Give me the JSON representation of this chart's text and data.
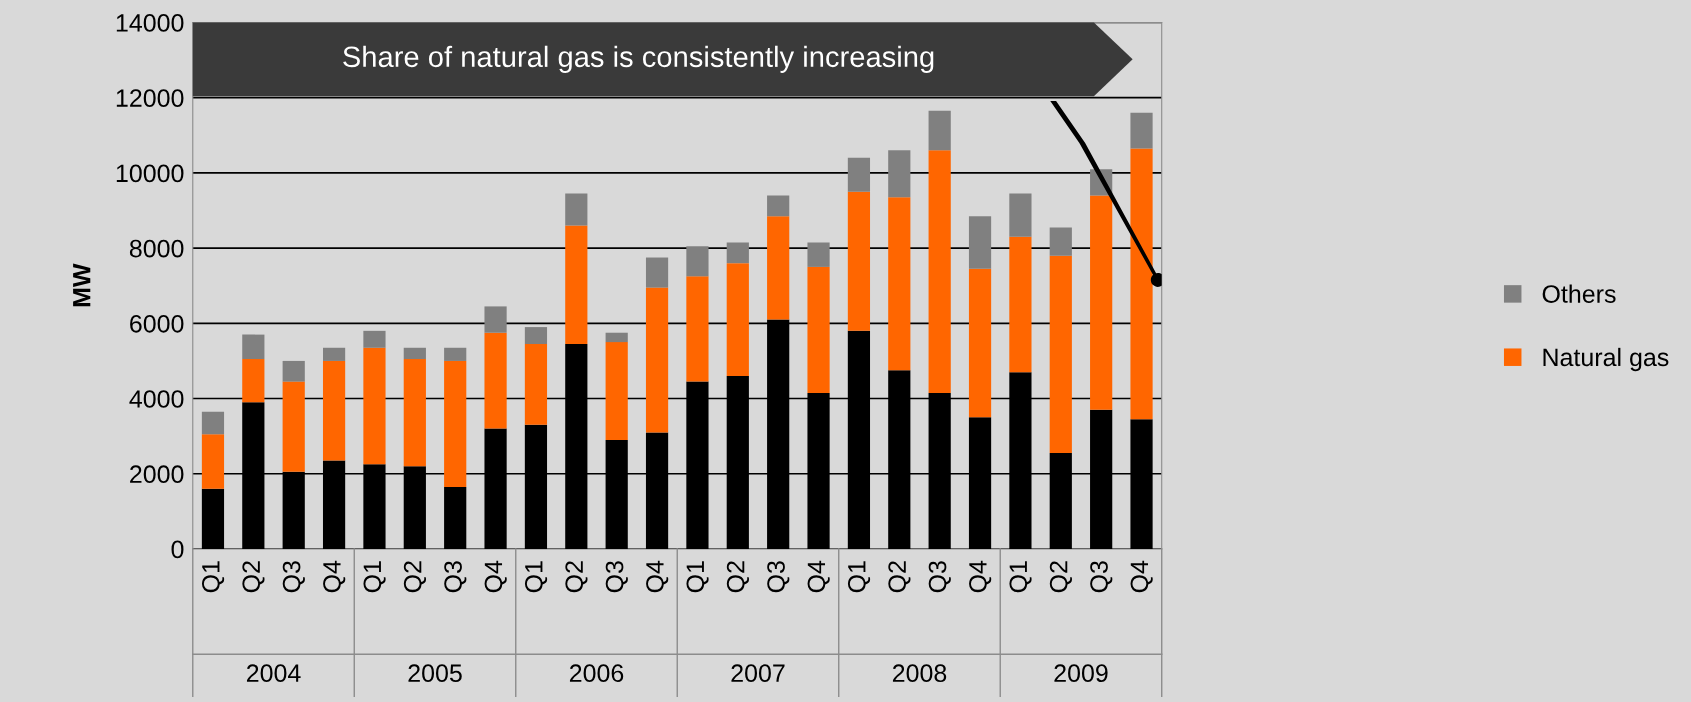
{
  "chart_data": {
    "type": "bar",
    "stacked": true,
    "ylabel": "MW",
    "categories": [
      "Q1",
      "Q2",
      "Q3",
      "Q4",
      "Q1",
      "Q2",
      "Q3",
      "Q4",
      "Q1",
      "Q2",
      "Q3",
      "Q4",
      "Q1",
      "Q2",
      "Q3",
      "Q4",
      "Q1",
      "Q2",
      "Q3",
      "Q4",
      "Q1",
      "Q2",
      "Q3",
      "Q4"
    ],
    "series": [
      {
        "color": "#000000",
        "values": [
          1600,
          3900,
          2050,
          2350,
          2250,
          2200,
          1650,
          3200,
          3300,
          5450,
          2900,
          3100,
          4450,
          4600,
          6100,
          4150,
          5800,
          4750,
          4150,
          3500,
          4700,
          2550,
          3700,
          3450
        ]
      },
      {
        "name": "Natural gas",
        "color": "#ff6600",
        "values": [
          1450,
          1150,
          2400,
          2650,
          3100,
          2850,
          3350,
          2550,
          2150,
          3150,
          2600,
          3850,
          2800,
          3000,
          2750,
          3350,
          3700,
          4600,
          6450,
          3950,
          3600,
          5250,
          5700,
          7200
        ]
      },
      {
        "name": "Others",
        "color": "#808080",
        "values": [
          600,
          650,
          550,
          350,
          450,
          300,
          350,
          700,
          450,
          850,
          250,
          800,
          800,
          550,
          550,
          650,
          900,
          1250,
          1050,
          1400,
          1150,
          750,
          700,
          950
        ]
      }
    ],
    "ylim": [
      0,
      14000
    ],
    "yticks": [
      0,
      2000,
      4000,
      6000,
      8000,
      10000,
      12000,
      14000
    ],
    "grid": "y",
    "legend": "right",
    "annotations": [
      "Share of natural gas is consistently increasing",
      "2004",
      "2005",
      "2006",
      "2007",
      "2008",
      "2009"
    ]
  }
}
